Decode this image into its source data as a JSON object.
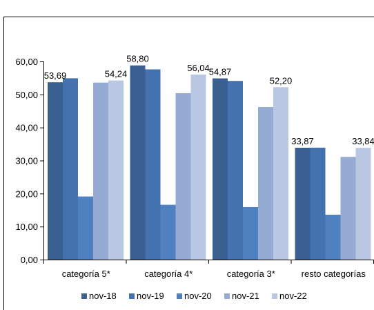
{
  "chart_data": {
    "type": "bar",
    "categories": [
      "categoría 5*",
      "categoría 4*",
      "categoría 3*",
      "resto categorías"
    ],
    "series": [
      {
        "name": "nov-18",
        "values": [
          53.69,
          58.8,
          54.87,
          33.87
        ],
        "color": "#3A5F91"
      },
      {
        "name": "nov-19",
        "values": [
          54.9,
          57.6,
          54.1,
          33.9
        ],
        "color": "#4472AE"
      },
      {
        "name": "nov-20",
        "values": [
          19.1,
          16.6,
          15.9,
          13.6
        ],
        "color": "#4F81C0"
      },
      {
        "name": "nov-21",
        "values": [
          53.6,
          50.4,
          46.2,
          31.1
        ],
        "color": "#95ABD3"
      },
      {
        "name": "nov-22",
        "values": [
          54.24,
          56.04,
          52.2,
          33.84
        ],
        "color": "#B9C7E3"
      }
    ],
    "data_labels": [
      {
        "category_index": 0,
        "series_index": 0,
        "text": "53,69"
      },
      {
        "category_index": 0,
        "series_index": 4,
        "text": "54,24"
      },
      {
        "category_index": 1,
        "series_index": 0,
        "text": "58,80"
      },
      {
        "category_index": 1,
        "series_index": 4,
        "text": "56,04"
      },
      {
        "category_index": 2,
        "series_index": 0,
        "text": "54,87"
      },
      {
        "category_index": 2,
        "series_index": 4,
        "text": "52,20"
      },
      {
        "category_index": 3,
        "series_index": 0,
        "text": "33,87"
      },
      {
        "category_index": 3,
        "series_index": 4,
        "text": "33,84"
      }
    ],
    "y_ticks": [
      "0,00",
      "10,00",
      "20,00",
      "30,00",
      "40,00",
      "50,00",
      "60,00"
    ],
    "ylim": [
      0,
      60
    ],
    "title": "",
    "xlabel": "",
    "ylabel": "",
    "grid": false,
    "legend_position": "bottom"
  }
}
